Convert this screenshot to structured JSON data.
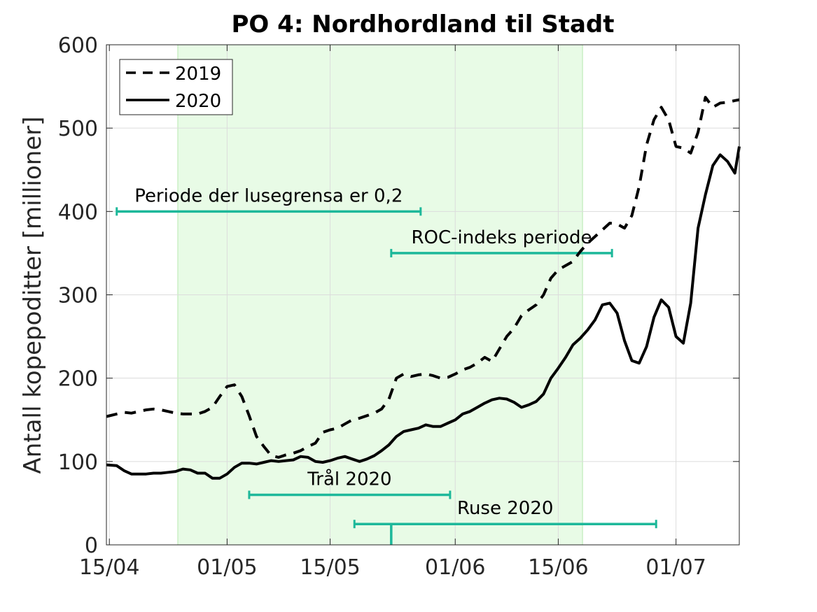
{
  "chart_data": {
    "type": "line",
    "title": "PO 4: Nordhordland til Stadt",
    "ylabel": "Antall kopepoditter [millioner]",
    "xlabel": "",
    "x_start_day": 0,
    "xlim_days": [
      -0.4,
      85.6
    ],
    "ylim": [
      0,
      600
    ],
    "yticks": [
      0,
      100,
      200,
      300,
      400,
      500,
      600
    ],
    "xticks": [
      {
        "day": 0,
        "label": "15/04"
      },
      {
        "day": 16,
        "label": "01/05"
      },
      {
        "day": 30,
        "label": "15/05"
      },
      {
        "day": 47,
        "label": "01/06"
      },
      {
        "day": 61,
        "label": "15/06"
      },
      {
        "day": 77,
        "label": "01/07"
      }
    ],
    "grid": true,
    "legend": {
      "position": "top-left",
      "entries": [
        "2019",
        "2020"
      ]
    },
    "shaded_region_days": [
      9.3,
      64.3
    ],
    "shaded_color": "#e8fbe6",
    "annotation_color": "#1db89a",
    "series": [
      {
        "name": "2019",
        "style": "dashed",
        "x_days": [
          -0.4,
          1,
          2,
          3,
          4,
          5,
          6,
          7,
          8,
          9,
          10,
          11,
          12,
          13,
          14,
          15,
          16,
          17,
          18,
          19,
          20,
          21,
          22,
          23,
          24,
          25,
          26,
          27,
          28,
          29,
          30,
          31,
          32,
          33,
          34,
          35,
          36,
          37,
          38,
          39,
          40,
          41,
          42,
          43,
          44,
          45,
          46,
          47,
          48,
          49,
          50,
          51,
          52,
          53,
          54,
          55,
          56,
          57,
          58,
          59,
          60,
          61,
          62,
          63,
          64,
          65,
          66,
          67,
          68,
          69,
          70,
          71,
          72,
          73,
          74,
          75,
          76,
          77,
          78,
          79,
          80,
          81,
          82,
          83,
          84,
          85,
          85.6
        ],
        "values": [
          154,
          157,
          159,
          158,
          160,
          162,
          163,
          162,
          160,
          158,
          157,
          157,
          157,
          160,
          165,
          178,
          190,
          192,
          178,
          155,
          130,
          118,
          107,
          105,
          108,
          110,
          113,
          118,
          122,
          135,
          138,
          140,
          145,
          150,
          152,
          155,
          158,
          163,
          175,
          200,
          205,
          202,
          204,
          205,
          203,
          200,
          201,
          205,
          210,
          213,
          218,
          225,
          220,
          235,
          250,
          260,
          275,
          282,
          288,
          300,
          320,
          330,
          335,
          340,
          352,
          362,
          370,
          378,
          386,
          385,
          380,
          395,
          430,
          480,
          510,
          525,
          510,
          478,
          476,
          470,
          495,
          537,
          525,
          530,
          531,
          533,
          534
        ]
      },
      {
        "name": "2020",
        "style": "solid",
        "x_days": [
          -0.4,
          1,
          2,
          3,
          4,
          5,
          6,
          7,
          8,
          9,
          10,
          11,
          12,
          13,
          14,
          15,
          16,
          17,
          18,
          19,
          20,
          21,
          22,
          23,
          24,
          25,
          26,
          27,
          28,
          29,
          30,
          31,
          32,
          33,
          34,
          35,
          36,
          37,
          38,
          39,
          40,
          41,
          42,
          43,
          44,
          45,
          46,
          47,
          48,
          49,
          50,
          51,
          52,
          53,
          54,
          55,
          56,
          57,
          58,
          59,
          60,
          61,
          62,
          63,
          64,
          65,
          66,
          67,
          68,
          69,
          70,
          71,
          72,
          73,
          74,
          75,
          76,
          77,
          78,
          79,
          80,
          81,
          82,
          83,
          84,
          85,
          85.6
        ],
        "values": [
          96,
          95,
          89,
          85,
          85,
          85,
          86,
          86,
          87,
          88,
          91,
          90,
          86,
          86,
          80,
          80,
          85,
          93,
          98,
          98,
          97,
          99,
          101,
          100,
          101,
          102,
          106,
          105,
          100,
          99,
          101,
          104,
          106,
          103,
          100,
          103,
          107,
          113,
          120,
          130,
          136,
          138,
          140,
          144,
          142,
          142,
          146,
          150,
          157,
          160,
          165,
          170,
          174,
          176,
          175,
          171,
          165,
          168,
          172,
          181,
          200,
          212,
          225,
          240,
          248,
          258,
          270,
          288,
          290,
          278,
          245,
          221,
          218,
          238,
          273,
          294,
          285,
          250,
          242,
          290,
          380,
          420,
          455,
          468,
          460,
          446,
          478
        ]
      }
    ],
    "annotations": [
      {
        "label": "Periode der lusegrensa er 0,2",
        "x_start_day": 1,
        "x_end_day": 42.3,
        "y": 400
      },
      {
        "label": "ROC-indeks periode",
        "x_start_day": 38.3,
        "x_end_day": 68.3,
        "y": 350
      },
      {
        "label": "Trål 2020",
        "x_start_day": 19,
        "x_end_day": 46.3,
        "y": 60
      },
      {
        "label": "Ruse 2020",
        "x_start_day": 33.3,
        "x_end_day": 74.3,
        "y": 25
      }
    ],
    "marker": {
      "x_day": 38.3,
      "y_top": 25
    }
  }
}
